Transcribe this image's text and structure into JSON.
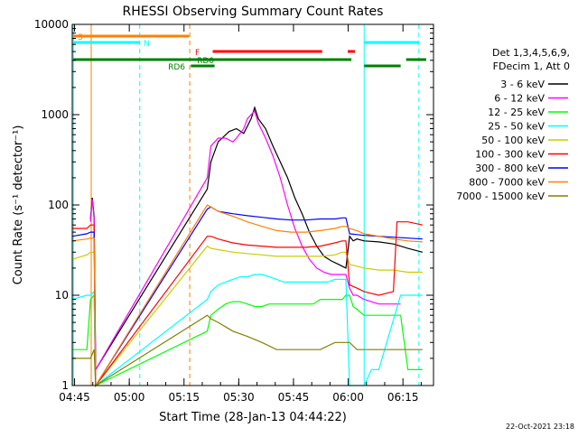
{
  "chart_data": {
    "type": "line",
    "title": "RHESSI Observing Summary Count Rates",
    "xlabel": "Start Time (28-Jan-13 04:44:22)",
    "ylabel": "Count Rate (s⁻¹ detector⁻¹)",
    "y_scale": "log",
    "ylim": [
      1,
      10000
    ],
    "xlim_minutes_from_start": [
      0,
      99
    ],
    "x_ticks": [
      {
        "label": "04:45",
        "minute": 0.63
      },
      {
        "label": "05:00",
        "minute": 15.63
      },
      {
        "label": "05:15",
        "minute": 30.63
      },
      {
        "label": "05:30",
        "minute": 45.63
      },
      {
        "label": "05:45",
        "minute": 60.63
      },
      {
        "label": "06:00",
        "minute": 75.63
      },
      {
        "label": "06:15",
        "minute": 90.63
      }
    ],
    "y_ticks": [
      {
        "label": "1",
        "value": 1
      },
      {
        "label": "10",
        "value": 10
      },
      {
        "label": "100",
        "value": 100
      },
      {
        "label": "1000",
        "value": 1000
      },
      {
        "label": "10000",
        "value": 10000
      }
    ],
    "legend": {
      "placement": "right",
      "header_lines": [
        "Det 1,3,4,5,6,9,",
        "FDecim 1, Att 0"
      ]
    },
    "series": [
      {
        "name": "3 - 6 keV",
        "color": "#000000",
        "points": [
          [
            5,
            70
          ],
          [
            5.5,
            120
          ],
          [
            6,
            75
          ],
          [
            6.4,
            1.5
          ],
          [
            37,
            150
          ],
          [
            38,
            300
          ],
          [
            40,
            500
          ],
          [
            43,
            650
          ],
          [
            45,
            700
          ],
          [
            47,
            620
          ],
          [
            49,
            900
          ],
          [
            50,
            1200
          ],
          [
            51,
            900
          ],
          [
            53,
            700
          ],
          [
            55,
            450
          ],
          [
            57,
            300
          ],
          [
            59,
            200
          ],
          [
            61,
            120
          ],
          [
            63,
            80
          ],
          [
            65,
            50
          ],
          [
            67,
            35
          ],
          [
            69,
            27
          ],
          [
            71,
            24
          ],
          [
            73,
            22
          ],
          [
            75,
            20
          ],
          [
            76,
            45
          ],
          [
            77,
            40
          ],
          [
            78,
            42
          ],
          [
            80,
            40
          ],
          [
            84,
            39
          ],
          [
            88,
            37
          ],
          [
            92,
            33
          ],
          [
            96,
            30
          ]
        ]
      },
      {
        "name": "6 - 12 keV",
        "color": "#ff00ff",
        "points": [
          [
            5,
            65
          ],
          [
            5.5,
            115
          ],
          [
            6,
            70
          ],
          [
            6.4,
            1.5
          ],
          [
            37,
            200
          ],
          [
            38,
            450
          ],
          [
            40,
            550
          ],
          [
            42,
            550
          ],
          [
            44,
            500
          ],
          [
            45,
            550
          ],
          [
            47,
            700
          ],
          [
            48,
            900
          ],
          [
            49,
            1000
          ],
          [
            50,
            1100
          ],
          [
            51,
            800
          ],
          [
            53,
            550
          ],
          [
            55,
            350
          ],
          [
            57,
            200
          ],
          [
            59,
            100
          ],
          [
            61,
            55
          ],
          [
            63,
            35
          ],
          [
            65,
            25
          ],
          [
            67,
            20
          ],
          [
            69,
            18
          ],
          [
            71,
            17
          ],
          [
            73,
            17
          ],
          [
            75,
            17
          ],
          [
            76,
            12
          ],
          [
            77,
            10
          ],
          [
            78,
            10
          ],
          [
            80,
            9
          ],
          [
            84,
            8
          ],
          [
            88,
            8
          ],
          [
            90,
            8
          ]
        ]
      },
      {
        "name": "12 - 25 keV",
        "color": "#00ff00",
        "points": [
          [
            0,
            2.5
          ],
          [
            4,
            2.5
          ],
          [
            5,
            9
          ],
          [
            6,
            10
          ],
          [
            6.4,
            1
          ],
          [
            37,
            4
          ],
          [
            38,
            6
          ],
          [
            40,
            7
          ],
          [
            42,
            8
          ],
          [
            44,
            8.5
          ],
          [
            46,
            8.5
          ],
          [
            48,
            8
          ],
          [
            50,
            7.5
          ],
          [
            52,
            7.5
          ],
          [
            54,
            8
          ],
          [
            56,
            8
          ],
          [
            58,
            8
          ],
          [
            60,
            8
          ],
          [
            62,
            8
          ],
          [
            64,
            8
          ],
          [
            66,
            8
          ],
          [
            68,
            9
          ],
          [
            70,
            9
          ],
          [
            72,
            9
          ],
          [
            74,
            9
          ],
          [
            75,
            10
          ],
          [
            76,
            10
          ],
          [
            77,
            7.5
          ],
          [
            78,
            7
          ],
          [
            80,
            6
          ],
          [
            84,
            6
          ],
          [
            88,
            6
          ],
          [
            90,
            6
          ],
          [
            92,
            1.5
          ],
          [
            96,
            1.5
          ]
        ]
      },
      {
        "name": "25 - 50 keV",
        "color": "#00ffff",
        "points": [
          [
            0,
            9
          ],
          [
            4,
            10
          ],
          [
            5,
            10
          ],
          [
            6,
            11
          ],
          [
            6.4,
            1
          ],
          [
            37,
            9
          ],
          [
            38,
            11
          ],
          [
            40,
            13
          ],
          [
            42,
            14
          ],
          [
            44,
            15
          ],
          [
            46,
            16
          ],
          [
            48,
            16
          ],
          [
            50,
            17
          ],
          [
            52,
            17
          ],
          [
            54,
            16
          ],
          [
            56,
            15
          ],
          [
            58,
            14
          ],
          [
            60,
            14
          ],
          [
            62,
            14
          ],
          [
            64,
            14
          ],
          [
            66,
            14
          ],
          [
            68,
            14
          ],
          [
            70,
            14
          ],
          [
            72,
            15
          ],
          [
            74,
            15
          ],
          [
            75,
            15
          ],
          [
            76,
            1
          ],
          [
            78,
            1
          ],
          [
            80,
            1
          ],
          [
            82,
            1.5
          ],
          [
            84,
            1.5
          ],
          [
            90,
            10
          ],
          [
            96,
            10
          ]
        ]
      },
      {
        "name": "50 - 100 keV",
        "color": "#cccc00",
        "points": [
          [
            0,
            25
          ],
          [
            4,
            28
          ],
          [
            5,
            30
          ],
          [
            6,
            30
          ],
          [
            6.4,
            1
          ],
          [
            37,
            35
          ],
          [
            38,
            33
          ],
          [
            40,
            32
          ],
          [
            44,
            30
          ],
          [
            48,
            29
          ],
          [
            52,
            28
          ],
          [
            56,
            27
          ],
          [
            60,
            27
          ],
          [
            64,
            27
          ],
          [
            68,
            27
          ],
          [
            72,
            28
          ],
          [
            74,
            30
          ],
          [
            75,
            30
          ],
          [
            76,
            22
          ],
          [
            78,
            21
          ],
          [
            80,
            20
          ],
          [
            84,
            19
          ],
          [
            88,
            19
          ],
          [
            92,
            18
          ],
          [
            96,
            18
          ]
        ]
      },
      {
        "name": "100 - 300 keV",
        "color": "#ff0000",
        "points": [
          [
            0,
            55
          ],
          [
            4,
            55
          ],
          [
            5,
            60
          ],
          [
            6,
            60
          ],
          [
            6.4,
            1
          ],
          [
            37,
            45
          ],
          [
            38,
            45
          ],
          [
            40,
            42
          ],
          [
            44,
            38
          ],
          [
            48,
            36
          ],
          [
            52,
            35
          ],
          [
            56,
            34
          ],
          [
            60,
            34
          ],
          [
            64,
            34
          ],
          [
            68,
            35
          ],
          [
            72,
            38
          ],
          [
            74,
            40
          ],
          [
            75,
            40
          ],
          [
            76,
            13
          ],
          [
            78,
            12
          ],
          [
            80,
            11
          ],
          [
            84,
            10
          ],
          [
            88,
            11
          ],
          [
            89,
            65
          ],
          [
            92,
            65
          ],
          [
            96,
            60
          ]
        ]
      },
      {
        "name": "300 - 800 keV",
        "color": "#0000ff",
        "points": [
          [
            0,
            45
          ],
          [
            4,
            48
          ],
          [
            5,
            50
          ],
          [
            6,
            50
          ],
          [
            6.4,
            1
          ],
          [
            37,
            90
          ],
          [
            38,
            95
          ],
          [
            40,
            85
          ],
          [
            44,
            80
          ],
          [
            48,
            76
          ],
          [
            52,
            73
          ],
          [
            56,
            70
          ],
          [
            60,
            68
          ],
          [
            64,
            68
          ],
          [
            68,
            70
          ],
          [
            72,
            70
          ],
          [
            74,
            72
          ],
          [
            75,
            72
          ],
          [
            76,
            48
          ],
          [
            78,
            47
          ],
          [
            80,
            46
          ],
          [
            84,
            45
          ],
          [
            88,
            44
          ],
          [
            92,
            43
          ],
          [
            96,
            42
          ]
        ]
      },
      {
        "name": "800 - 7000 keV",
        "color": "#ff8000",
        "points": [
          [
            0,
            40
          ],
          [
            4,
            42
          ],
          [
            5,
            43
          ],
          [
            6,
            43
          ],
          [
            6.4,
            1
          ],
          [
            37,
            100
          ],
          [
            38,
            95
          ],
          [
            40,
            85
          ],
          [
            44,
            75
          ],
          [
            48,
            65
          ],
          [
            52,
            58
          ],
          [
            56,
            52
          ],
          [
            60,
            50
          ],
          [
            64,
            50
          ],
          [
            68,
            52
          ],
          [
            72,
            55
          ],
          [
            74,
            58
          ],
          [
            75,
            58
          ],
          [
            76,
            55
          ],
          [
            78,
            52
          ],
          [
            80,
            48
          ],
          [
            84,
            45
          ],
          [
            88,
            42
          ],
          [
            92,
            40
          ],
          [
            96,
            39
          ]
        ]
      },
      {
        "name": "7000 - 15000 keV",
        "color": "#808000",
        "points": [
          [
            0,
            2
          ],
          [
            4,
            2
          ],
          [
            5,
            2
          ],
          [
            6,
            2.5
          ],
          [
            6.4,
            1
          ],
          [
            37,
            6
          ],
          [
            38,
            5.5
          ],
          [
            40,
            5
          ],
          [
            44,
            4
          ],
          [
            48,
            3.5
          ],
          [
            52,
            3
          ],
          [
            56,
            2.5
          ],
          [
            60,
            2.5
          ],
          [
            64,
            2.5
          ],
          [
            68,
            2.5
          ],
          [
            72,
            3
          ],
          [
            74,
            3
          ],
          [
            75,
            3
          ],
          [
            76,
            3
          ],
          [
            78,
            2.5
          ],
          [
            80,
            2.5
          ],
          [
            84,
            2.5
          ],
          [
            88,
            2.5
          ],
          [
            92,
            2.5
          ],
          [
            96,
            2.5
          ]
        ]
      }
    ],
    "state_bars": [
      {
        "label": "S",
        "color": "#ff8000",
        "segments": [
          [
            0.3,
            32
          ]
        ]
      },
      {
        "label": "N",
        "color": "#00ffff",
        "segments": [
          [
            0.3,
            18.5
          ],
          [
            80,
            95
          ]
        ]
      },
      {
        "label": "F",
        "color": "#ff0000",
        "segments": [
          [
            38.5,
            68.5
          ],
          [
            75.5,
            77.5
          ]
        ]
      },
      {
        "label": "RD0",
        "color": "#008000",
        "segments": [
          [
            0.3,
            76.5
          ],
          [
            91.5,
            97
          ]
        ]
      },
      {
        "label": "RD6",
        "color": "#008000",
        "segments": [
          [
            32.5,
            39
          ],
          [
            80,
            90
          ]
        ]
      }
    ],
    "vertical_lines": [
      {
        "minute": 0.3,
        "color": "#00ffff",
        "style": "solid"
      },
      {
        "minute": 5.2,
        "color": "#ff8000",
        "style": "solid"
      },
      {
        "minute": 18.5,
        "color": "#00ffff",
        "style": "dashed"
      },
      {
        "minute": 32.2,
        "color": "#ff8000",
        "style": "dashed"
      },
      {
        "minute": 80.0,
        "color": "#00ffff",
        "style": "solid"
      },
      {
        "minute": 95.0,
        "color": "#00ffff",
        "style": "dashed"
      }
    ],
    "grid": false
  },
  "footer": {
    "timestamp": "22-Oct-2021 23:18"
  }
}
